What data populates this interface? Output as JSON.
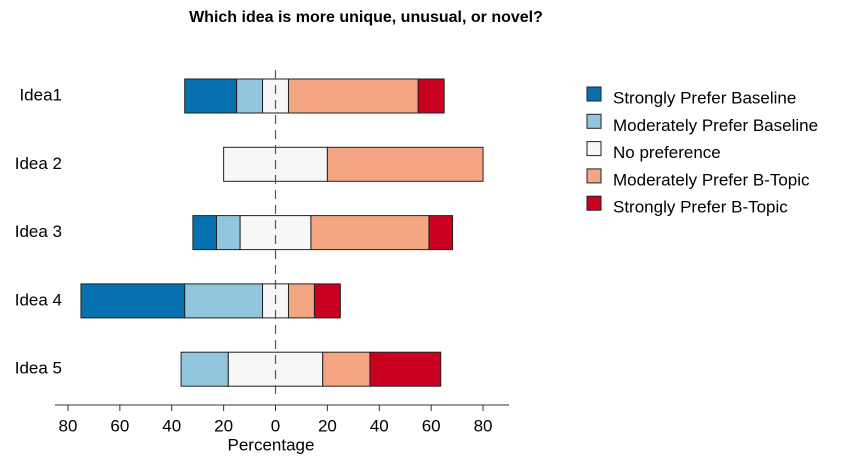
{
  "chart_data": {
    "type": "diverging-bar",
    "title": "Which idea is more unique, unusual, or novel?",
    "xlabel": "Percentage",
    "categories": [
      "Idea1",
      "Idea 2",
      "Idea 3",
      "Idea 4",
      "Idea 5"
    ],
    "series": [
      {
        "name": "Strongly Prefer Baseline",
        "color": "#0571b0",
        "values": [
          20,
          0,
          9.1,
          40,
          0
        ]
      },
      {
        "name": "Moderately Prefer Baseline",
        "color": "#92c5de",
        "values": [
          10,
          0,
          9.1,
          30,
          18.2
        ]
      },
      {
        "name": "No preference",
        "color": "#f7f7f7",
        "values": [
          10,
          40,
          27.3,
          10,
          36.4
        ]
      },
      {
        "name": "Moderately Prefer B-Topic",
        "color": "#f4a582",
        "values": [
          50,
          60,
          45.5,
          10,
          18.2
        ]
      },
      {
        "name": "Strongly Prefer B-Topic",
        "color": "#ca0020",
        "values": [
          10,
          0,
          9.1,
          10,
          27.3
        ]
      }
    ],
    "xlim": [
      -85,
      90
    ],
    "xticks": [
      {
        "value": -80,
        "label": "80"
      },
      {
        "value": -60,
        "label": "60"
      },
      {
        "value": -40,
        "label": "40"
      },
      {
        "value": -20,
        "label": "20"
      },
      0,
      20,
      40,
      60,
      80
    ],
    "legend": "right"
  }
}
